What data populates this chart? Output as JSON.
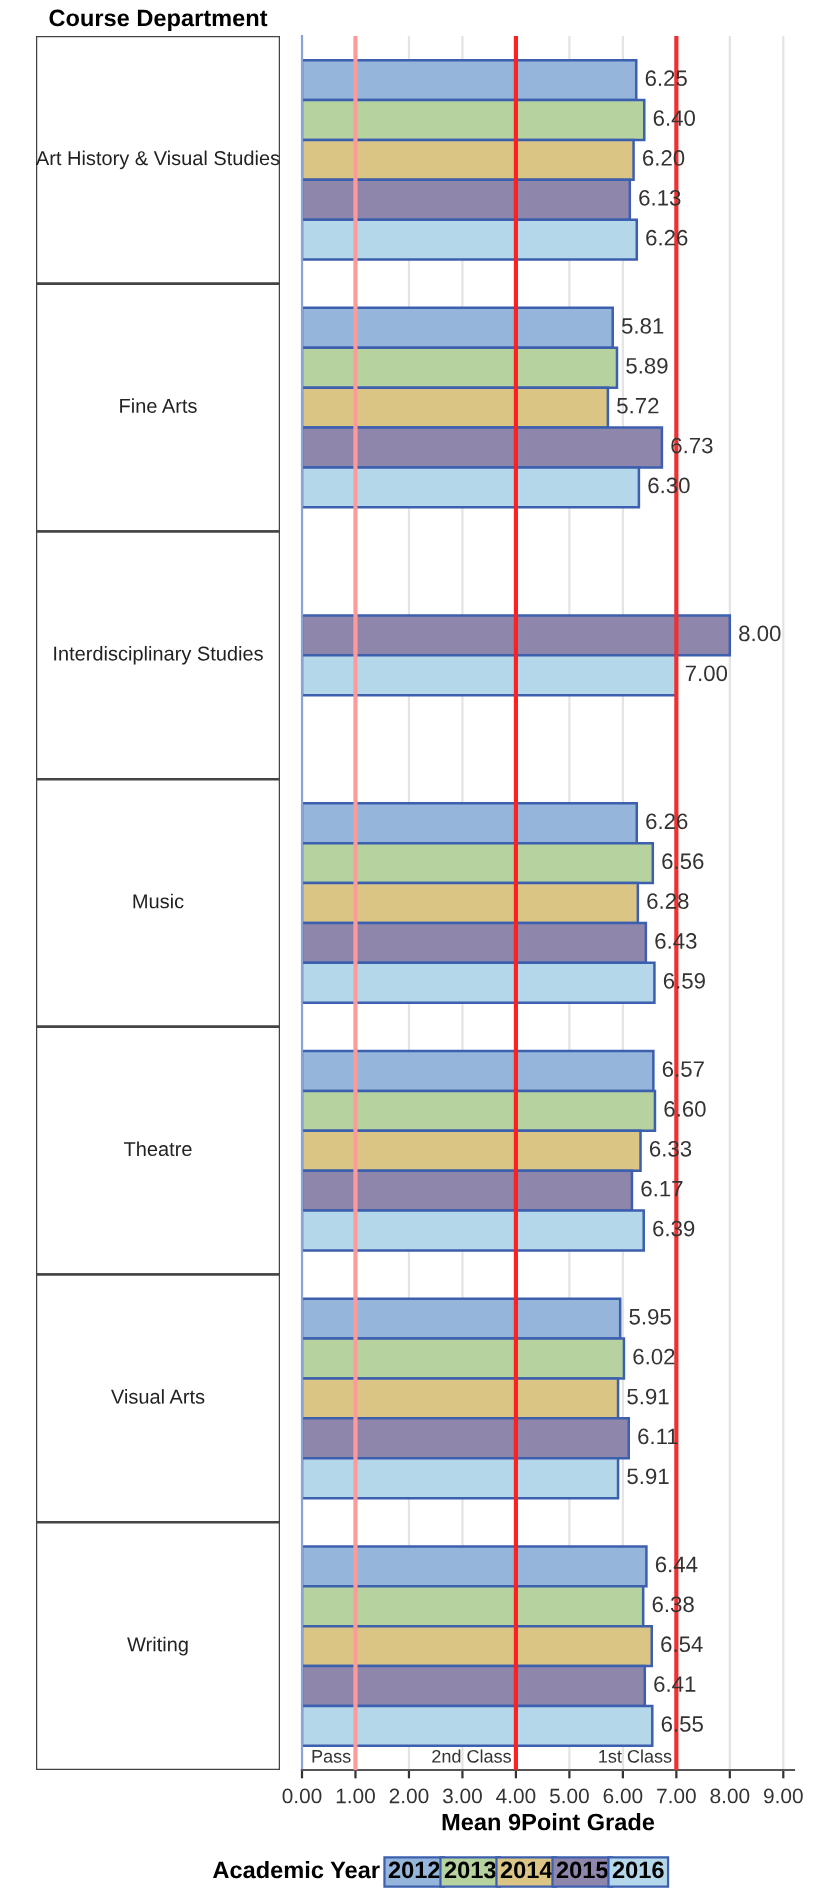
{
  "chart_data": {
    "type": "bar",
    "orientation": "horizontal",
    "ylabel": "Course Department",
    "xlabel": "Mean 9Point Grade",
    "legend_title": "Academic Year",
    "legend": "bottom",
    "grid": "x",
    "categories": [
      "Art History & Visual Studies",
      "Fine Arts",
      "Interdisciplinary Studies",
      "Music",
      "Theatre",
      "Visual Arts",
      "Writing"
    ],
    "series": [
      {
        "name": "2012",
        "color": "#95b6da",
        "values": [
          6.25,
          5.81,
          null,
          6.26,
          6.57,
          5.95,
          6.44
        ],
        "value_labels": [
          "6.25",
          "5.81",
          null,
          "6.26",
          "6.57",
          "5.95",
          "6.44"
        ]
      },
      {
        "name": "2013",
        "color": "#b6d29f",
        "values": [
          6.4,
          5.89,
          null,
          6.56,
          6.6,
          6.02,
          6.38
        ],
        "value_labels": [
          "6.40",
          "5.89",
          null,
          "6.56",
          "6.60",
          "6.02",
          "6.38"
        ]
      },
      {
        "name": "2014",
        "color": "#dbc584",
        "values": [
          6.2,
          5.72,
          null,
          6.28,
          6.33,
          5.91,
          6.54
        ],
        "value_labels": [
          "6.20",
          "5.72",
          null,
          "6.28",
          "6.33",
          "5.91",
          "6.54"
        ]
      },
      {
        "name": "2015",
        "color": "#8f87ab",
        "values": [
          6.13,
          6.73,
          8.0,
          6.43,
          6.17,
          6.11,
          6.41
        ],
        "value_labels": [
          "6.13",
          "6.73",
          "8.00",
          "6.43",
          "6.17",
          "6.11",
          "6.41"
        ]
      },
      {
        "name": "2016",
        "color": "#b5d7ea",
        "values": [
          6.26,
          6.3,
          7.0,
          6.59,
          6.39,
          5.91,
          6.55
        ],
        "value_labels": [
          "6.26",
          "6.30",
          "7.00",
          "6.59",
          "6.39",
          "5.91",
          "6.55"
        ]
      }
    ],
    "xlim": [
      0,
      9.2
    ],
    "xticks": [
      {
        "value": 0,
        "label": "0.00"
      },
      {
        "value": 1,
        "label": "1.00"
      },
      {
        "value": 2,
        "label": "2.00"
      },
      {
        "value": 3,
        "label": "3.00"
      },
      {
        "value": 4,
        "label": "4.00"
      },
      {
        "value": 5,
        "label": "5.00"
      },
      {
        "value": 6,
        "label": "6.00"
      },
      {
        "value": 7,
        "label": "7.00"
      },
      {
        "value": 8,
        "label": "8.00"
      },
      {
        "value": 9,
        "label": "9.00"
      }
    ],
    "ref_lines": [
      {
        "axis": "x",
        "value": 1,
        "label": "Pass",
        "color": "#ff9a9a"
      },
      {
        "axis": "x",
        "value": 4,
        "label": "2nd Class",
        "color": "#ff2020"
      },
      {
        "axis": "x",
        "value": 7,
        "label": "1st Class",
        "color": "#f03030"
      }
    ]
  }
}
